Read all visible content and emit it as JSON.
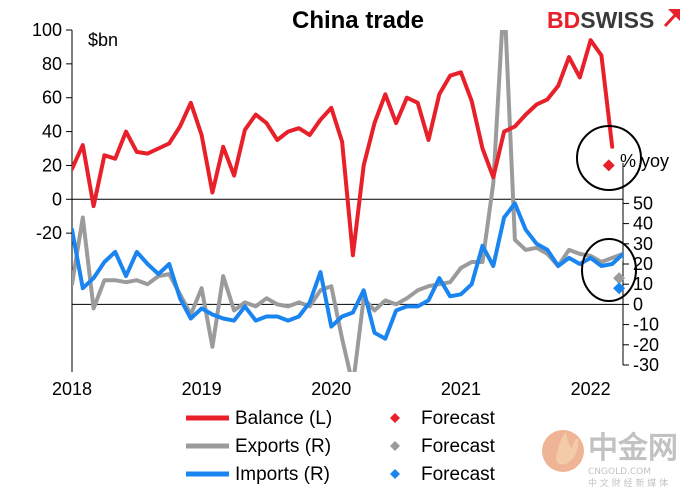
{
  "chart_data": {
    "type": "line",
    "title": "China trade",
    "left_axis": {
      "unit": "$bn",
      "ylim": [
        -40,
        100
      ],
      "ticks": [
        100,
        80,
        60,
        40,
        20,
        0,
        -20
      ]
    },
    "right_axis": {
      "unit": "% yoy",
      "ylim": [
        -30,
        70
      ],
      "ticks": [
        50,
        40,
        30,
        20,
        10,
        0,
        -10,
        -20,
        -30
      ]
    },
    "x_axis": {
      "xlim": [
        2018.0,
        2022.25
      ],
      "ticks": [
        {
          "value": 2018,
          "label": "2018"
        },
        {
          "value": 2019,
          "label": "2019"
        },
        {
          "value": 2020,
          "label": "2020"
        },
        {
          "value": 2021,
          "label": "2021"
        },
        {
          "value": 2022,
          "label": "2022"
        }
      ]
    },
    "start": 2018.0,
    "step": 0.08333,
    "series": [
      {
        "name": "Balance (L)",
        "axis": "left",
        "color": "#e8202a",
        "values": [
          18,
          32,
          -4,
          26,
          24,
          40,
          28,
          27,
          30,
          33,
          43,
          57,
          38,
          4,
          31,
          14,
          41,
          50,
          45,
          35,
          40,
          42,
          38,
          47,
          54,
          34,
          -33,
          20,
          45,
          62,
          45,
          60,
          57,
          35,
          62,
          73,
          75,
          58,
          30,
          13,
          40,
          43,
          50,
          56,
          59,
          67,
          84,
          72,
          94,
          85,
          31
        ]
      },
      {
        "name": "Exports (R)",
        "axis": "right",
        "color": "#9b9b9b",
        "values": [
          10,
          43,
          -2,
          12,
          12,
          11,
          12,
          10,
          14,
          15,
          5,
          -5,
          8,
          -21,
          14,
          -3,
          1,
          -1,
          3,
          0,
          -1,
          1,
          -1,
          7,
          9,
          -17,
          -40,
          3,
          -3,
          2,
          0,
          3,
          7,
          9,
          10,
          11,
          18,
          21,
          21,
          60,
          154,
          32,
          27,
          28,
          25,
          19,
          27,
          25,
          24,
          21,
          23,
          25,
          5
        ]
      },
      {
        "name": "Imports (R)",
        "axis": "right",
        "color": "#1a85f0",
        "values": [
          37,
          8,
          13,
          21,
          26,
          14,
          26,
          20,
          15,
          20,
          3,
          -7,
          -2,
          -5,
          -7,
          -8,
          -1,
          -8,
          -6,
          -6,
          -8,
          -6,
          1,
          16,
          -11,
          -6,
          -4,
          7,
          -14,
          -17,
          -3,
          -1,
          -1,
          2,
          13,
          4,
          5,
          10,
          29,
          19,
          43,
          50,
          37,
          30,
          27,
          19,
          23,
          20,
          23,
          19,
          20,
          25,
          11
        ]
      }
    ],
    "forecasts": [
      {
        "name": "Forecast",
        "series": "Balance (L)",
        "axis": "left",
        "x": 2022.14,
        "y": 20,
        "color": "#e8202a"
      },
      {
        "name": "Forecast",
        "series": "Exports (R)",
        "axis": "right",
        "x": 2022.22,
        "y": 13,
        "color": "#9b9b9b"
      },
      {
        "name": "Forecast",
        "series": "Imports (R)",
        "axis": "right",
        "x": 2022.22,
        "y": 8,
        "color": "#1a85f0"
      }
    ],
    "legend": {
      "position": "bottom",
      "lines": [
        "Balance (L)",
        "Exports (R)",
        "Imports (R)"
      ],
      "markers": [
        "Forecast",
        "Forecast",
        "Forecast"
      ]
    },
    "grid": false
  },
  "brand": {
    "logo_bd": "BD",
    "logo_swiss": "SWISS",
    "logo_color": "#e8202a"
  },
  "watermark": {
    "main": "中金网",
    "domain": "CNGOLD.COM",
    "tagline": "中 文 财 经 新 媒 体"
  }
}
